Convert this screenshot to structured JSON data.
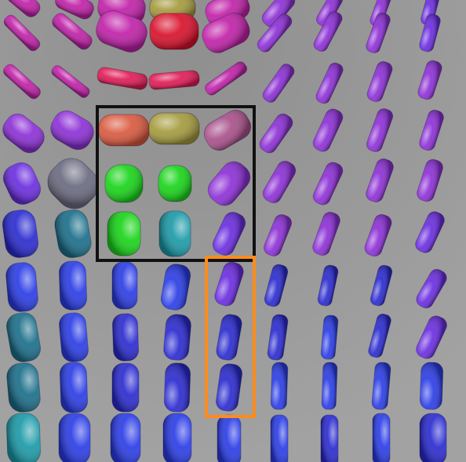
{
  "scene": {
    "description_kind": "tensor-glyph-field",
    "colors": {
      "background": "#9c9c9c",
      "magenta": "#c020a8",
      "red": "#d8102a",
      "crimson": "#e01a55",
      "purple": "#8c2fd6",
      "violet": "#6a2ce0",
      "blue": "#2a3ce6",
      "navy": "#2a2ad0",
      "teal": "#1a6e8a",
      "cyan": "#1a9aa8",
      "green": "#18d418",
      "orange_red": "#d9583e",
      "olive": "#a49a3c",
      "mauve": "#a8508a",
      "slate": "#6a6a80"
    },
    "highlight_boxes": [
      {
        "name": "black-selection-box",
        "color": "#111111"
      },
      {
        "name": "orange-selection-box",
        "color": "#ff8c1a"
      }
    ]
  }
}
